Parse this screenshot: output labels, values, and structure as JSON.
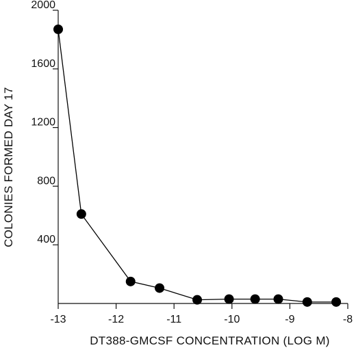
{
  "chart_data": {
    "type": "line",
    "title": "",
    "xlabel": "DT388-GMCSF CONCENTRATION (LOG M)",
    "ylabel": "COLONIES FORMED DAY 17",
    "xlim": [
      -13,
      -8
    ],
    "ylim": [
      0,
      2000
    ],
    "x_ticks": [
      -13,
      -12,
      -11,
      -10,
      -9,
      -8
    ],
    "x_tick_labels": [
      "-13",
      "-12",
      "-11",
      "-10",
      "-9",
      "-8"
    ],
    "y_ticks": [
      400,
      800,
      1200,
      1600,
      2000
    ],
    "y_tick_labels": [
      "400",
      "800",
      "1200",
      "1600",
      "2000"
    ],
    "grid": false,
    "marker": "filled-circle",
    "series": [
      {
        "color": "#000000",
        "x": [
          -13.0,
          -12.6,
          -11.75,
          -11.25,
          -10.6,
          -10.05,
          -9.6,
          -9.2,
          -8.7,
          -8.2
        ],
        "y": [
          1870,
          610,
          150,
          105,
          25,
          30,
          30,
          30,
          10,
          10
        ]
      }
    ]
  }
}
